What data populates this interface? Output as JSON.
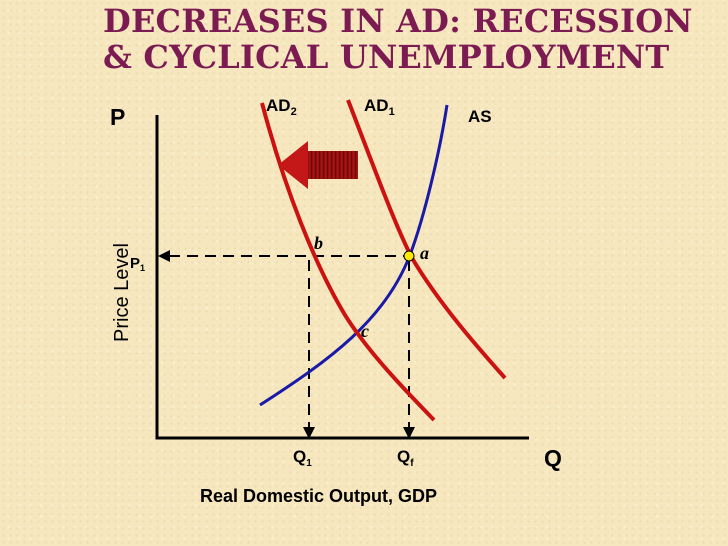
{
  "title": {
    "line1": "DECREASES IN AD: RECESSION",
    "line2": "& CYCLICAL UNEMPLOYMENT"
  },
  "axes": {
    "y_label": "Price Level",
    "y_symbol": "P",
    "x_symbol": "Q",
    "x_label": "Real Domestic Output, GDP"
  },
  "curves": {
    "ad2": {
      "base": "AD",
      "sub": "2"
    },
    "ad1": {
      "base": "AD",
      "sub": "1"
    },
    "as": {
      "label": "AS"
    }
  },
  "points": {
    "a": "a",
    "b": "b",
    "c": "c"
  },
  "levels": {
    "p1": {
      "base": "P",
      "sub": "1"
    },
    "q1": {
      "base": "Q",
      "sub": "1"
    },
    "qf": {
      "base": "Q",
      "sub": "f"
    }
  },
  "colors": {
    "title": "#7b1b52",
    "ad_curves": "#cc1111",
    "as_curve": "#1a1aa8",
    "axes": "#000000",
    "arrow": "#a01010",
    "equilibrium_point": "#ffe800"
  }
}
